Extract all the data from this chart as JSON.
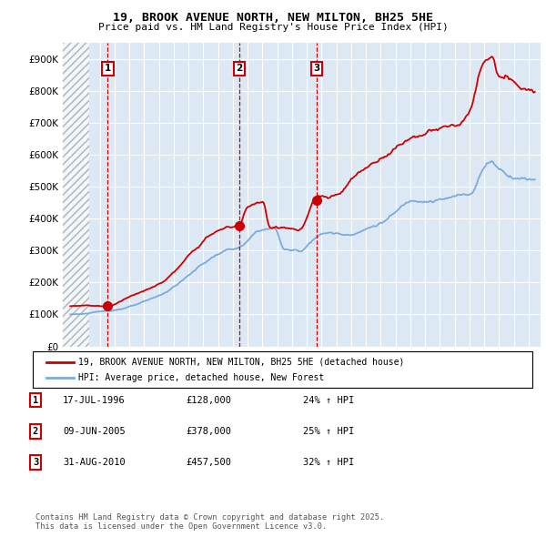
{
  "title_line1": "19, BROOK AVENUE NORTH, NEW MILTON, BH25 5HE",
  "title_line2": "Price paid vs. HM Land Registry's House Price Index (HPI)",
  "ylim": [
    0,
    950000
  ],
  "yticks": [
    0,
    100000,
    200000,
    300000,
    400000,
    500000,
    600000,
    700000,
    800000,
    900000
  ],
  "ytick_labels": [
    "£0",
    "£100K",
    "£200K",
    "£300K",
    "£400K",
    "£500K",
    "£600K",
    "£700K",
    "£800K",
    "£900K"
  ],
  "xlim_start": 1993.5,
  "xlim_end": 2025.8,
  "hatch_end_year": 1995.3,
  "transaction_color": "#cc0000",
  "hpi_color": "#7aabdc",
  "background_color": "#dce9f5",
  "grid_color": "#ffffff",
  "legend_entry1": "19, BROOK AVENUE NORTH, NEW MILTON, BH25 5HE (detached house)",
  "legend_entry2": "HPI: Average price, detached house, New Forest",
  "transactions": [
    {
      "label": "1",
      "date": 1996.54,
      "price": 128000
    },
    {
      "label": "2",
      "date": 2005.44,
      "price": 378000
    },
    {
      "label": "3",
      "date": 2010.66,
      "price": 457500
    }
  ],
  "transaction_table": [
    {
      "num": "1",
      "date": "17-JUL-1996",
      "price": "£128,000",
      "hpi": "24% ↑ HPI"
    },
    {
      "num": "2",
      "date": "09-JUN-2005",
      "price": "£378,000",
      "hpi": "25% ↑ HPI"
    },
    {
      "num": "3",
      "date": "31-AUG-2010",
      "price": "£457,500",
      "hpi": "32% ↑ HPI"
    }
  ],
  "footer_text": "Contains HM Land Registry data © Crown copyright and database right 2025.\nThis data is licensed under the Open Government Licence v3.0."
}
